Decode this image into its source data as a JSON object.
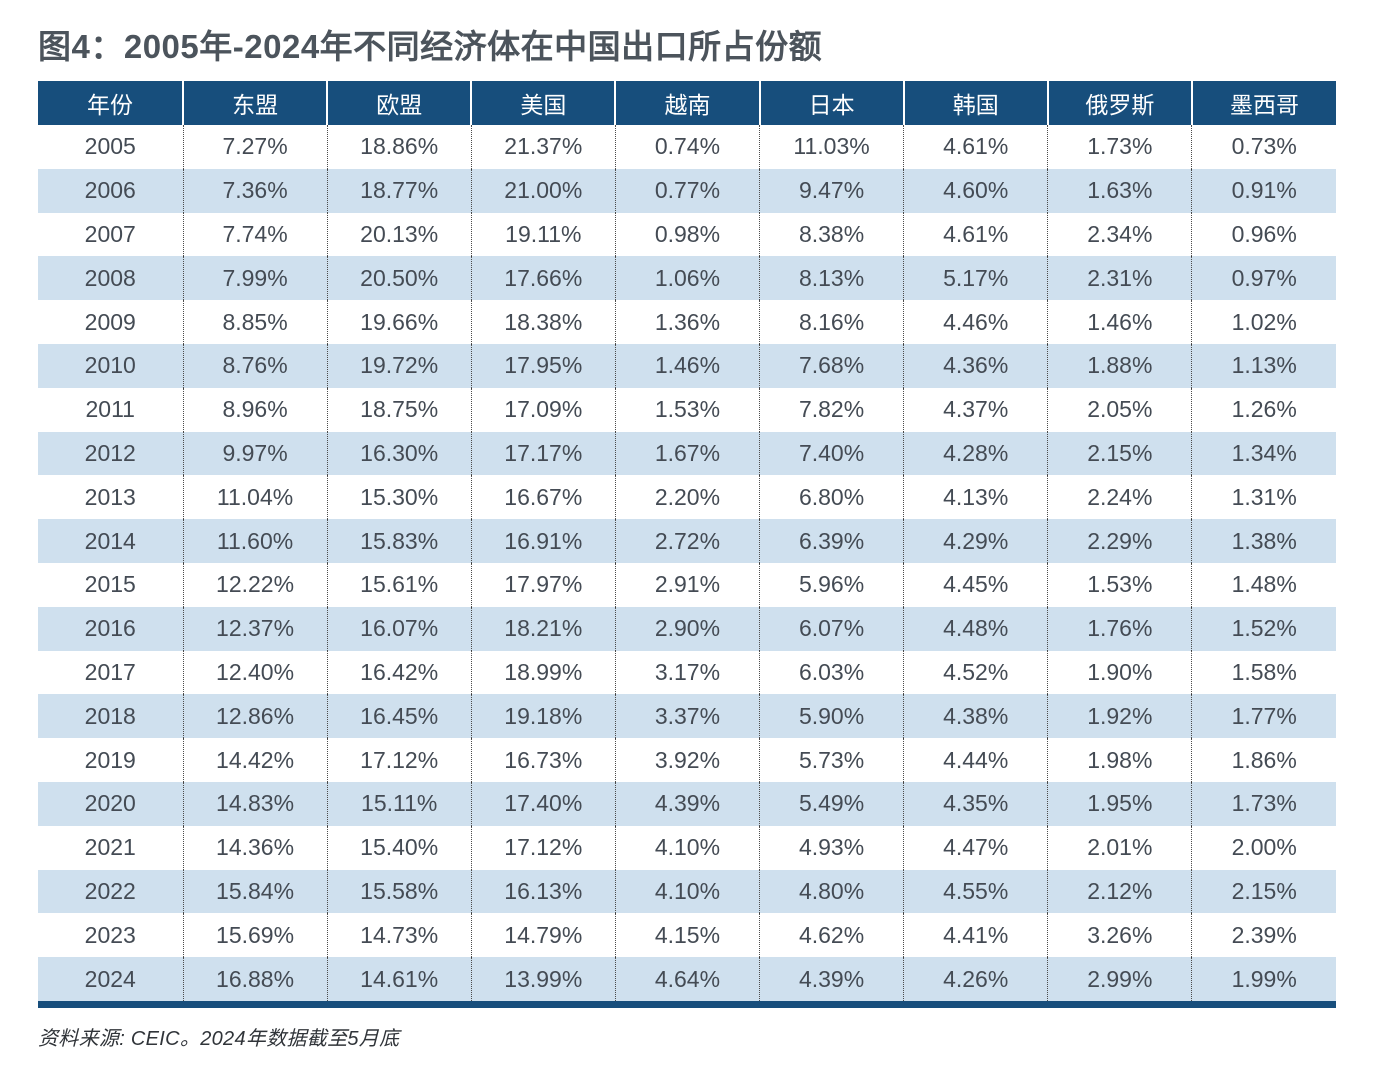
{
  "chart_data": {
    "type": "table",
    "title": "图4：2005年-2024年不同经济体在中国出口所占份额",
    "columns": [
      "年份",
      "东盟",
      "欧盟",
      "美国",
      "越南",
      "日本",
      "韩国",
      "俄罗斯",
      "墨西哥"
    ],
    "rows": [
      [
        "2005",
        "7.27%",
        "18.86%",
        "21.37%",
        "0.74%",
        "11.03%",
        "4.61%",
        "1.73%",
        "0.73%"
      ],
      [
        "2006",
        "7.36%",
        "18.77%",
        "21.00%",
        "0.77%",
        "9.47%",
        "4.60%",
        "1.63%",
        "0.91%"
      ],
      [
        "2007",
        "7.74%",
        "20.13%",
        "19.11%",
        "0.98%",
        "8.38%",
        "4.61%",
        "2.34%",
        "0.96%"
      ],
      [
        "2008",
        "7.99%",
        "20.50%",
        "17.66%",
        "1.06%",
        "8.13%",
        "5.17%",
        "2.31%",
        "0.97%"
      ],
      [
        "2009",
        "8.85%",
        "19.66%",
        "18.38%",
        "1.36%",
        "8.16%",
        "4.46%",
        "1.46%",
        "1.02%"
      ],
      [
        "2010",
        "8.76%",
        "19.72%",
        "17.95%",
        "1.46%",
        "7.68%",
        "4.36%",
        "1.88%",
        "1.13%"
      ],
      [
        "2011",
        "8.96%",
        "18.75%",
        "17.09%",
        "1.53%",
        "7.82%",
        "4.37%",
        "2.05%",
        "1.26%"
      ],
      [
        "2012",
        "9.97%",
        "16.30%",
        "17.17%",
        "1.67%",
        "7.40%",
        "4.28%",
        "2.15%",
        "1.34%"
      ],
      [
        "2013",
        "11.04%",
        "15.30%",
        "16.67%",
        "2.20%",
        "6.80%",
        "4.13%",
        "2.24%",
        "1.31%"
      ],
      [
        "2014",
        "11.60%",
        "15.83%",
        "16.91%",
        "2.72%",
        "6.39%",
        "4.29%",
        "2.29%",
        "1.38%"
      ],
      [
        "2015",
        "12.22%",
        "15.61%",
        "17.97%",
        "2.91%",
        "5.96%",
        "4.45%",
        "1.53%",
        "1.48%"
      ],
      [
        "2016",
        "12.37%",
        "16.07%",
        "18.21%",
        "2.90%",
        "6.07%",
        "4.48%",
        "1.76%",
        "1.52%"
      ],
      [
        "2017",
        "12.40%",
        "16.42%",
        "18.99%",
        "3.17%",
        "6.03%",
        "4.52%",
        "1.90%",
        "1.58%"
      ],
      [
        "2018",
        "12.86%",
        "16.45%",
        "19.18%",
        "3.37%",
        "5.90%",
        "4.38%",
        "1.92%",
        "1.77%"
      ],
      [
        "2019",
        "14.42%",
        "17.12%",
        "16.73%",
        "3.92%",
        "5.73%",
        "4.44%",
        "1.98%",
        "1.86%"
      ],
      [
        "2020",
        "14.83%",
        "15.11%",
        "17.40%",
        "4.39%",
        "5.49%",
        "4.35%",
        "1.95%",
        "1.73%"
      ],
      [
        "2021",
        "14.36%",
        "15.40%",
        "17.12%",
        "4.10%",
        "4.93%",
        "4.47%",
        "2.01%",
        "2.00%"
      ],
      [
        "2022",
        "15.84%",
        "15.58%",
        "16.13%",
        "4.10%",
        "4.80%",
        "4.55%",
        "2.12%",
        "2.15%"
      ],
      [
        "2023",
        "15.69%",
        "14.73%",
        "14.79%",
        "4.15%",
        "4.62%",
        "4.41%",
        "3.26%",
        "2.39%"
      ],
      [
        "2024",
        "16.88%",
        "14.61%",
        "13.99%",
        "4.64%",
        "4.39%",
        "4.26%",
        "2.99%",
        "1.99%"
      ]
    ],
    "source_note": "资料来源: CEIC。2024年数据截至5月底",
    "layout": {
      "legend": "none",
      "grid": "dotted-column-separators",
      "row_striping": "even-rows-light-blue"
    },
    "colors": {
      "header_background": "#174e7c",
      "alternate_row_background": "#cfe0ee",
      "bottom_border": "#174e7c",
      "title_text": "#4c545c",
      "cell_text": "#444b54"
    }
  }
}
